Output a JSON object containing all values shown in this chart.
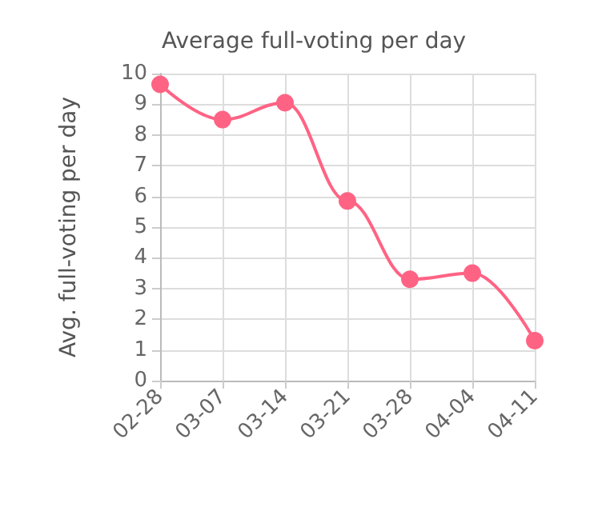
{
  "chart_data": {
    "type": "line",
    "title": "Average full-voting per day",
    "ylabel": "Avg. full-voting per day",
    "categories": [
      "02-28",
      "03-07",
      "03-14",
      "03-21",
      "03-28",
      "04-04",
      "04-11"
    ],
    "series": [
      {
        "color": "#ff6384",
        "values": [
          9.65,
          8.5,
          9.05,
          5.85,
          3.3,
          3.5,
          1.3
        ]
      }
    ],
    "ylim": [
      0,
      10
    ],
    "yticks": [
      0,
      1,
      2,
      3,
      4,
      5,
      6,
      7,
      8,
      9,
      10
    ],
    "grid": true,
    "marker": "circle",
    "line_style": "solid"
  }
}
